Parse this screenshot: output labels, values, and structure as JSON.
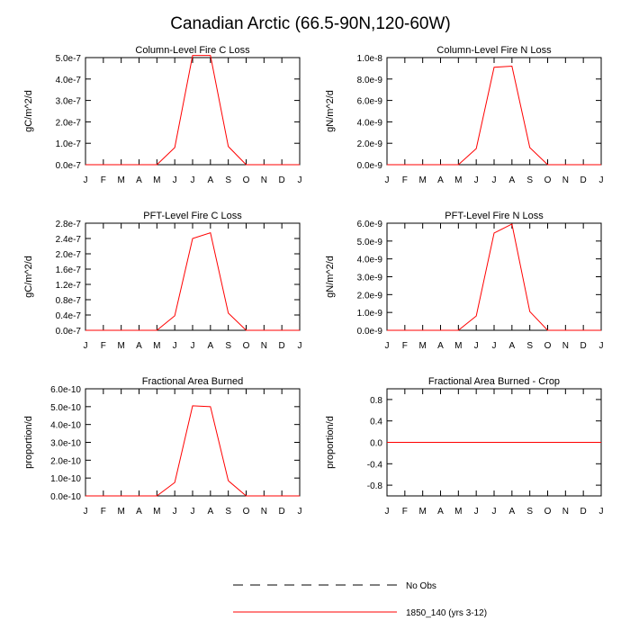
{
  "main_title": "Canadian Arctic (66.5-90N,120-60W)",
  "legend": {
    "items": [
      {
        "label": "No Obs",
        "color": "#000000",
        "dash": true
      },
      {
        "label": "1850_140 (yrs 3-12)",
        "color": "#ff0000",
        "dash": false
      }
    ]
  },
  "chart_data": [
    {
      "type": "line",
      "title": "Column-Level Fire C Loss",
      "ylabel": "gC/m^2/d",
      "categories": [
        "J",
        "F",
        "M",
        "A",
        "M",
        "J",
        "J",
        "A",
        "S",
        "O",
        "N",
        "D",
        "J"
      ],
      "ylim": [
        0,
        5e-07
      ],
      "yticks": [
        "0.0e-7",
        "1.0e-7",
        "2.0e-7",
        "3.0e-7",
        "4.0e-7",
        "5.0e-7"
      ],
      "series": [
        {
          "color": "#ff0000",
          "values": [
            0,
            0,
            0,
            0,
            0,
            8e-08,
            5.1e-07,
            5.1e-07,
            8.5e-08,
            0,
            0,
            0,
            0
          ]
        }
      ]
    },
    {
      "type": "line",
      "title": "Column-Level Fire N Loss",
      "ylabel": "gN/m^2/d",
      "categories": [
        "J",
        "F",
        "M",
        "A",
        "M",
        "J",
        "J",
        "A",
        "S",
        "O",
        "N",
        "D",
        "J"
      ],
      "ylim": [
        0,
        1e-08
      ],
      "yticks": [
        "0.0e-9",
        "2.0e-9",
        "4.0e-9",
        "6.0e-9",
        "8.0e-9",
        "1.0e-8"
      ],
      "series": [
        {
          "color": "#ff0000",
          "values": [
            0,
            0,
            0,
            0,
            0,
            1.5e-09,
            9.1e-09,
            9.2e-09,
            1.6e-09,
            0,
            0,
            0,
            0
          ]
        }
      ]
    },
    {
      "type": "line",
      "title": "PFT-Level Fire C Loss",
      "ylabel": "gC/m^2/d",
      "categories": [
        "J",
        "F",
        "M",
        "A",
        "M",
        "J",
        "J",
        "A",
        "S",
        "O",
        "N",
        "D",
        "J"
      ],
      "ylim": [
        0,
        2.8e-07
      ],
      "yticks": [
        "0.0e-7",
        "0.4e-7",
        "0.8e-7",
        "1.2e-7",
        "1.6e-7",
        "2.0e-7",
        "2.4e-7",
        "2.8e-7"
      ],
      "series": [
        {
          "color": "#ff0000",
          "values": [
            0,
            0,
            0,
            0,
            0,
            3.8e-08,
            2.4e-07,
            2.55e-07,
            4.5e-08,
            0,
            0,
            0,
            0
          ]
        }
      ]
    },
    {
      "type": "line",
      "title": "PFT-Level Fire N Loss",
      "ylabel": "gN/m^2/d",
      "categories": [
        "J",
        "F",
        "M",
        "A",
        "M",
        "J",
        "J",
        "A",
        "S",
        "O",
        "N",
        "D",
        "J"
      ],
      "ylim": [
        0,
        6e-09
      ],
      "yticks": [
        "0.0e-9",
        "1.0e-9",
        "2.0e-9",
        "3.0e-9",
        "4.0e-9",
        "5.0e-9",
        "6.0e-9"
      ],
      "series": [
        {
          "color": "#ff0000",
          "values": [
            0,
            0,
            0,
            0,
            0,
            8e-10,
            5.45e-09,
            5.95e-09,
            1.05e-09,
            0,
            0,
            0,
            0
          ]
        }
      ]
    },
    {
      "type": "line",
      "title": "Fractional Area Burned",
      "ylabel": "proportion/d",
      "categories": [
        "J",
        "F",
        "M",
        "A",
        "M",
        "J",
        "J",
        "A",
        "S",
        "O",
        "N",
        "D",
        "J"
      ],
      "ylim": [
        0,
        6e-10
      ],
      "yticks": [
        "0.0e-10",
        "1.0e-10",
        "2.0e-10",
        "3.0e-10",
        "4.0e-10",
        "5.0e-10",
        "6.0e-10"
      ],
      "series": [
        {
          "color": "#ff0000",
          "values": [
            0,
            0,
            0,
            0,
            0,
            7.5e-11,
            5.05e-10,
            5e-10,
            8.5e-11,
            0,
            0,
            0,
            0
          ]
        }
      ]
    },
    {
      "type": "line",
      "title": "Fractional Area Burned - Crop",
      "ylabel": "proportion/d",
      "categories": [
        "J",
        "F",
        "M",
        "A",
        "M",
        "J",
        "J",
        "A",
        "S",
        "O",
        "N",
        "D",
        "J"
      ],
      "ylim": [
        -1,
        1
      ],
      "yticks": [
        "-0.8",
        "-0.4",
        "0.0",
        "0.4",
        "0.8"
      ],
      "ytick_values": [
        -0.8,
        -0.4,
        0,
        0.4,
        0.8
      ],
      "series": [
        {
          "color": "#ff0000",
          "values": [
            0,
            0,
            0,
            0,
            0,
            0,
            0,
            0,
            0,
            0,
            0,
            0,
            0
          ]
        }
      ]
    }
  ]
}
